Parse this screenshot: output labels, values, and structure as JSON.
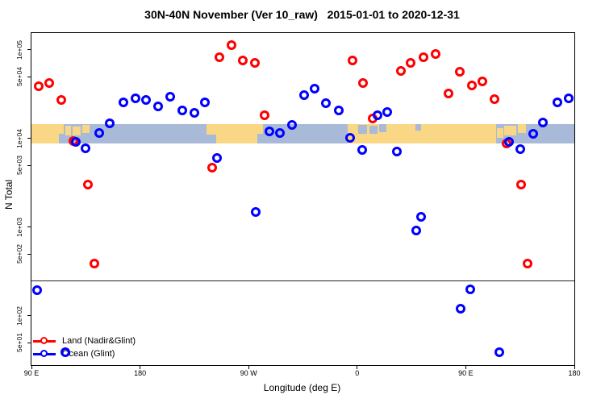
{
  "chart_data": {
    "type": "scatter",
    "title": "30N-40N November (Ver 10_raw)   2015-01-01 to 2020-12-31",
    "xlabel": "Longitude (deg E)",
    "ylabel": "N Total",
    "x_axis_note": "longitude wraps: axis runs 90E eastward around globe to 180 (values 90..540 deg E)",
    "x_range": [
      90,
      540
    ],
    "y_scale": "log10",
    "y_range_log10": [
      1.445,
      5.19
    ],
    "grid": "off",
    "legend_position": "bottom-left-inside",
    "x_ticks": [
      {
        "label": "90 E",
        "lon": 90
      },
      {
        "label": "180",
        "lon": 180
      },
      {
        "label": "90 W",
        "lon": 270
      },
      {
        "label": "0",
        "lon": 360
      },
      {
        "label": "90 E",
        "lon": 450
      },
      {
        "label": "180",
        "lon": 540
      }
    ],
    "y_ticks": [
      {
        "label": "1e+05",
        "value": 100000
      },
      {
        "label": "5e+04",
        "value": 50000
      },
      {
        "label": "1e+04",
        "value": 10000
      },
      {
        "label": "5e+03",
        "value": 5000
      },
      {
        "label": "1e+03",
        "value": 1000
      },
      {
        "label": "5e+02",
        "value": 500
      },
      {
        "label": "1e+02",
        "value": 100
      },
      {
        "label": "5e+01",
        "value": 50
      }
    ],
    "threshold_line_value": 250,
    "series": [
      {
        "name": "Land (Nadir&Glint)",
        "color": "#ff0000",
        "marker": "open-circle",
        "points": [
          {
            "lon": 96,
            "n": 39000
          },
          {
            "lon": 105,
            "n": 42000
          },
          {
            "lon": 115,
            "n": 27000
          },
          {
            "lon": 125,
            "n": 9400
          },
          {
            "lon": 137,
            "n": 3000
          },
          {
            "lon": 142,
            "n": 390
          },
          {
            "lon": 240,
            "n": 4700
          },
          {
            "lon": 246,
            "n": 83000
          },
          {
            "lon": 256,
            "n": 113000
          },
          {
            "lon": 265,
            "n": 76000
          },
          {
            "lon": 275,
            "n": 72000
          },
          {
            "lon": 283,
            "n": 18400
          },
          {
            "lon": 356,
            "n": 76000
          },
          {
            "lon": 365,
            "n": 42000
          },
          {
            "lon": 373,
            "n": 16800
          },
          {
            "lon": 396,
            "n": 58000
          },
          {
            "lon": 404,
            "n": 71000
          },
          {
            "lon": 415,
            "n": 83000
          },
          {
            "lon": 425,
            "n": 89000
          },
          {
            "lon": 436,
            "n": 32500
          },
          {
            "lon": 445,
            "n": 56500
          },
          {
            "lon": 455,
            "n": 40000
          },
          {
            "lon": 464,
            "n": 44000
          },
          {
            "lon": 474,
            "n": 28000
          },
          {
            "lon": 484,
            "n": 8800
          },
          {
            "lon": 496,
            "n": 3000
          },
          {
            "lon": 501,
            "n": 390
          }
        ]
      },
      {
        "name": "Ocean (Glint)",
        "color": "#0000ff",
        "marker": "open-circle",
        "points": [
          {
            "lon": 95,
            "n": 195
          },
          {
            "lon": 118,
            "n": 39
          },
          {
            "lon": 127,
            "n": 9200
          },
          {
            "lon": 135,
            "n": 7800
          },
          {
            "lon": 146,
            "n": 11600
          },
          {
            "lon": 155,
            "n": 14900
          },
          {
            "lon": 166,
            "n": 25700
          },
          {
            "lon": 176,
            "n": 28500
          },
          {
            "lon": 185,
            "n": 27000
          },
          {
            "lon": 195,
            "n": 23000
          },
          {
            "lon": 205,
            "n": 29500
          },
          {
            "lon": 215,
            "n": 20800
          },
          {
            "lon": 225,
            "n": 19500
          },
          {
            "lon": 234,
            "n": 25700
          },
          {
            "lon": 244,
            "n": 6050
          },
          {
            "lon": 276,
            "n": 1490
          },
          {
            "lon": 287,
            "n": 12000
          },
          {
            "lon": 296,
            "n": 11600
          },
          {
            "lon": 306,
            "n": 14300
          },
          {
            "lon": 316,
            "n": 31000
          },
          {
            "lon": 325,
            "n": 36600
          },
          {
            "lon": 334,
            "n": 25000
          },
          {
            "lon": 345,
            "n": 20800
          },
          {
            "lon": 354,
            "n": 10200
          },
          {
            "lon": 364,
            "n": 7450
          },
          {
            "lon": 377,
            "n": 18400
          },
          {
            "lon": 385,
            "n": 20000
          },
          {
            "lon": 393,
            "n": 7200
          },
          {
            "lon": 409,
            "n": 920
          },
          {
            "lon": 413,
            "n": 1310
          },
          {
            "lon": 446,
            "n": 120
          },
          {
            "lon": 454,
            "n": 200
          },
          {
            "lon": 478,
            "n": 39
          },
          {
            "lon": 486,
            "n": 9200
          },
          {
            "lon": 495,
            "n": 7600
          },
          {
            "lon": 506,
            "n": 11300
          },
          {
            "lon": 514,
            "n": 15300
          },
          {
            "lon": 526,
            "n": 25700
          },
          {
            "lon": 535,
            "n": 28500
          }
        ]
      }
    ],
    "map_band": {
      "description": "land/ocean map strip for the 30N-40N latitude belt",
      "n_top": 14600,
      "n_bottom": 8800,
      "land_color": "#f9d784",
      "ocean_color": "#a8bad8",
      "base_segments": [
        {
          "from": 90,
          "to": 113,
          "type": "land"
        },
        {
          "from": 113,
          "to": 235,
          "type": "ocean"
        },
        {
          "from": 235,
          "to": 282,
          "type": "land"
        },
        {
          "from": 282,
          "to": 352,
          "type": "ocean"
        },
        {
          "from": 352,
          "to": 475,
          "type": "land"
        },
        {
          "from": 475,
          "to": 540,
          "type": "ocean"
        }
      ],
      "patches": [
        {
          "from": 113,
          "to": 117,
          "top": 0.0,
          "bottom": 0.5,
          "type": "land"
        },
        {
          "from": 118,
          "to": 123,
          "top": 0.1,
          "bottom": 0.6,
          "type": "land"
        },
        {
          "from": 124,
          "to": 131,
          "top": 0.15,
          "bottom": 0.6,
          "type": "land"
        },
        {
          "from": 132,
          "to": 138,
          "top": 0.05,
          "bottom": 0.45,
          "type": "land"
        },
        {
          "from": 235,
          "to": 243,
          "top": 0.55,
          "bottom": 1.0,
          "type": "ocean"
        },
        {
          "from": 277,
          "to": 282,
          "top": 0.5,
          "bottom": 1.0,
          "type": "ocean"
        },
        {
          "from": 361,
          "to": 368,
          "top": 0.05,
          "bottom": 0.5,
          "type": "ocean"
        },
        {
          "from": 370,
          "to": 377,
          "top": 0.1,
          "bottom": 0.5,
          "type": "ocean"
        },
        {
          "from": 378,
          "to": 384,
          "top": 0.0,
          "bottom": 0.4,
          "type": "ocean"
        },
        {
          "from": 408,
          "to": 413,
          "top": 0.0,
          "bottom": 0.35,
          "type": "ocean"
        },
        {
          "from": 476,
          "to": 481,
          "top": 0.2,
          "bottom": 0.7,
          "type": "land"
        },
        {
          "from": 482,
          "to": 492,
          "top": 0.1,
          "bottom": 0.6,
          "type": "land"
        },
        {
          "from": 493,
          "to": 500,
          "top": 0.0,
          "bottom": 0.45,
          "type": "land"
        }
      ]
    }
  }
}
